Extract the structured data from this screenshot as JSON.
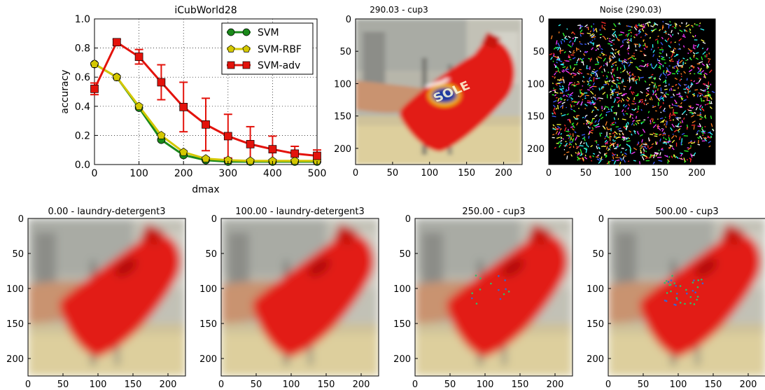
{
  "chart_data": [
    {
      "type": "line",
      "title": "iCubWorld28",
      "xlabel": "dmax",
      "ylabel": "accuracy",
      "xlim": [
        0,
        500
      ],
      "ylim": [
        0,
        1.0
      ],
      "xticks": [
        0,
        100,
        200,
        300,
        400,
        500
      ],
      "yticks": [
        0.0,
        0.2,
        0.4,
        0.6,
        0.8,
        1.0
      ],
      "grid": true,
      "legend_position": "top-right",
      "x": [
        0,
        50,
        100,
        150,
        200,
        250,
        300,
        350,
        400,
        450,
        500
      ],
      "series": [
        {
          "name": "SVM",
          "color": "#1a8a1a",
          "marker": "circle",
          "values": [
            0.69,
            0.6,
            0.39,
            0.17,
            0.065,
            0.03,
            0.02,
            0.02,
            0.02,
            0.02,
            0.02
          ]
        },
        {
          "name": "SVM-RBF",
          "color": "#d4c800",
          "marker": "pentagon",
          "values": [
            0.69,
            0.6,
            0.4,
            0.2,
            0.085,
            0.04,
            0.03,
            0.025,
            0.025,
            0.025,
            0.025
          ]
        },
        {
          "name": "SVM-adv",
          "color": "#e3120b",
          "marker": "square",
          "values": [
            0.52,
            0.84,
            0.74,
            0.565,
            0.395,
            0.275,
            0.195,
            0.14,
            0.105,
            0.075,
            0.06
          ],
          "err": [
            0.04,
            0.02,
            0.05,
            0.12,
            0.17,
            0.18,
            0.15,
            0.12,
            0.09,
            0.05,
            0.04
          ]
        }
      ]
    }
  ],
  "panels": {
    "top_orig": {
      "title": "290.03 - cup3"
    },
    "top_noise": {
      "title": "Noise (290.03)"
    },
    "bottom": [
      {
        "title": "0.00 - laundry-detergent3",
        "specks": 0
      },
      {
        "title": "100.00 - laundry-detergent3",
        "specks": 0
      },
      {
        "title": "250.00 - cup3",
        "specks": 14
      },
      {
        "title": "500.00 - cup3",
        "specks": 36
      }
    ],
    "axis_ticks": [
      "0",
      "50",
      "100",
      "150",
      "200"
    ]
  },
  "colors": {
    "background": "#ffffff",
    "bottle": "#e21a12",
    "wall": "#b9b9ae",
    "floor": "#d8c893",
    "hand": "#c9936f"
  }
}
